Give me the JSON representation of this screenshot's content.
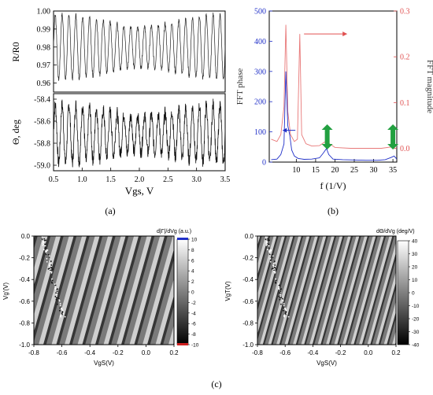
{
  "chart_data": [
    {
      "panel": "(a)",
      "type": "line",
      "top": {
        "ylabel": "R/R0",
        "ylim": [
          0.955,
          1.0
        ],
        "yticks": [
          "1.00",
          "0.99",
          "0.98",
          "0.97",
          "0.96"
        ],
        "series": [
          {
            "x_range": [
              0.5,
              3.5
            ],
            "oscillation_period_V": 0.12,
            "min": 0.962,
            "max": 0.998
          }
        ]
      },
      "bottom": {
        "ylabel": "Θ, deg",
        "ylim": [
          -59.05,
          -58.35
        ],
        "yticks": [
          "-58.4",
          "-58.6",
          "-58.8",
          "-59.0"
        ],
        "series": [
          {
            "x_range": [
              0.5,
              3.5
            ],
            "oscillation_period_V": 0.12,
            "min": -58.98,
            "max": -58.45
          }
        ]
      },
      "xlabel": "Vgs, V",
      "xlim": [
        0.5,
        3.5
      ],
      "xticks": [
        "0.5",
        "1.0",
        "1.5",
        "2.0",
        "2.5",
        "3.0",
        "3.5"
      ]
    },
    {
      "panel": "(b)",
      "type": "line",
      "xlabel": "f (1/V)",
      "xlim": [
        3,
        36
      ],
      "xticks": [
        "10",
        "15",
        "20",
        "25",
        "30",
        "35"
      ],
      "ylabel_left": "FFT phase",
      "ylim_left": [
        0,
        500
      ],
      "yticks_left": [
        "0",
        "100",
        "200",
        "300",
        "400",
        "500"
      ],
      "ylabel_right": "FFT magnitude",
      "ylim_right": [
        -0.03,
        0.3
      ],
      "yticks_right": [
        "0.0",
        "0.1",
        "0.2",
        "0.3"
      ],
      "series": [
        {
          "axis": "left",
          "color": "#2030c8",
          "points": [
            [
              3.5,
              8
            ],
            [
              5,
              10
            ],
            [
              6,
              25
            ],
            [
              6.8,
              60
            ],
            [
              7.3,
              300
            ],
            [
              7.8,
              120
            ],
            [
              8.3,
              90
            ],
            [
              8.8,
              40
            ],
            [
              9.5,
              20
            ],
            [
              10.5,
              12
            ],
            [
              12,
              9
            ],
            [
              14,
              10
            ],
            [
              16,
              14
            ],
            [
              17,
              30
            ],
            [
              17.8,
              45
            ],
            [
              18.4,
              25
            ],
            [
              19.5,
              10
            ],
            [
              22,
              8
            ],
            [
              25,
              7
            ],
            [
              28,
              6
            ],
            [
              31,
              6
            ],
            [
              33,
              8
            ],
            [
              34.5,
              15
            ],
            [
              35.3,
              20
            ],
            [
              36,
              10
            ]
          ]
        },
        {
          "axis": "right",
          "color": "#e87878",
          "points": [
            [
              3.5,
              0.02
            ],
            [
              5,
              0.015
            ],
            [
              6,
              0.03
            ],
            [
              6.8,
              0.09
            ],
            [
              7.3,
              0.27
            ],
            [
              7.8,
              0.08
            ],
            [
              8.5,
              0.03
            ],
            [
              9.5,
              0.015
            ],
            [
              10.3,
              0.02
            ],
            [
              10.9,
              0.25
            ],
            [
              11.4,
              0.03
            ],
            [
              12.5,
              0.01
            ],
            [
              14,
              0.005
            ],
            [
              16,
              0.006
            ],
            [
              17,
              0.012
            ],
            [
              17.8,
              0.016
            ],
            [
              18.6,
              0.01
            ],
            [
              20,
              0.002
            ],
            [
              24,
              0.0
            ],
            [
              28,
              0.0
            ],
            [
              32,
              0.0
            ],
            [
              34.5,
              0.003
            ],
            [
              35.3,
              0.01
            ],
            [
              36,
              0.004
            ]
          ]
        }
      ],
      "annotations": [
        {
          "type": "arrow",
          "direction": "left",
          "color": "#2030c8",
          "at_x": 6.5,
          "at_y": 105
        },
        {
          "type": "arrow",
          "direction": "right",
          "color": "#e05050",
          "at_x": 12,
          "at_y": 0.25
        },
        {
          "type": "double-arrow",
          "direction": "vertical",
          "color": "#22a040",
          "at_x": 18
        },
        {
          "type": "double-arrow",
          "direction": "vertical",
          "color": "#22a040",
          "at_x": 35
        }
      ]
    },
    {
      "panel": "(c)",
      "type": "heatmap",
      "maps": [
        {
          "colorbar_title": "d|Γ|/dVg (a.u.)",
          "colorbar_ticks": [
            "10",
            "8",
            "6",
            "4",
            "2",
            "0",
            "-2",
            "-4",
            "-6",
            "-8",
            "-10"
          ],
          "clim": [
            -10,
            10
          ],
          "xlabel": "VgS(V)",
          "ylabel": "Vg'(V)",
          "xlim": [
            -0.8,
            0.2
          ],
          "ylim": [
            -1.0,
            0.0
          ],
          "xticks": [
            "-0.8",
            "-0.6",
            "-0.4",
            "-0.2",
            "0.0",
            "0.2"
          ],
          "yticks": [
            "0.0",
            "-0.2",
            "-0.4",
            "-0.6",
            "-0.8",
            "-1.0"
          ]
        },
        {
          "colorbar_title": "dΘ/dVg (deg/V)",
          "colorbar_ticks": [
            "40",
            "30",
            "20",
            "10",
            "0",
            "-10",
            "-20",
            "-30",
            "-40"
          ],
          "clim": [
            -40,
            40
          ],
          "xlabel": "VgS(V)",
          "ylabel": "VgT(V)",
          "xlim": [
            -0.8,
            0.2
          ],
          "ylim": [
            -1.0,
            0.0
          ],
          "xticks": [
            "-0.8",
            "-0.6",
            "-0.4",
            "-0.2",
            "0.0",
            "0.2"
          ],
          "yticks": [
            "0.0",
            "-0.2",
            "-0.4",
            "-0.6",
            "-0.8",
            "-1.0"
          ]
        }
      ]
    }
  ],
  "captions": {
    "a": "(a)",
    "b": "(b)",
    "c": "(c)"
  }
}
